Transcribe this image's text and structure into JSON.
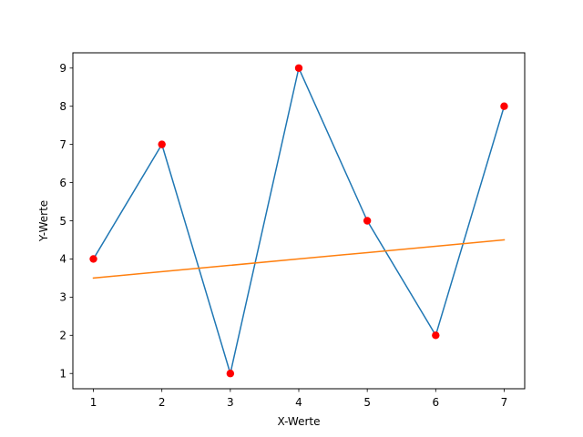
{
  "chart_data": {
    "type": "line",
    "title": "",
    "xlabel": "X-Werte",
    "ylabel": "Y-Werte",
    "x": [
      1,
      2,
      3,
      4,
      5,
      6,
      7
    ],
    "series": [
      {
        "kind": "line",
        "color": "#1f77b4",
        "values": [
          4,
          7,
          1,
          9,
          5,
          2,
          8
        ]
      },
      {
        "kind": "scatter",
        "color": "#ff0000",
        "values": [
          4,
          7,
          1,
          9,
          5,
          2,
          8
        ]
      },
      {
        "kind": "line",
        "color": "#ff7f0e",
        "values": [
          3.5,
          3.6667,
          3.8333,
          4.0,
          4.1667,
          4.3333,
          4.5
        ]
      }
    ],
    "xlim": [
      0.7,
      7.3
    ],
    "ylim": [
      0.6,
      9.4
    ],
    "xticks": [
      "1",
      "2",
      "3",
      "4",
      "5",
      "6",
      "7"
    ],
    "yticks": [
      "1",
      "2",
      "3",
      "4",
      "5",
      "6",
      "7",
      "8",
      "9"
    ],
    "grid": false,
    "legend": "none"
  }
}
